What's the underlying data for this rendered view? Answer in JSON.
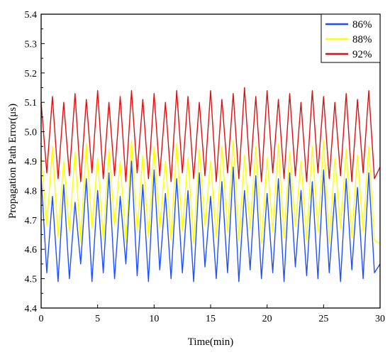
{
  "chart_data": {
    "type": "line",
    "title": "",
    "xlabel": "Time(min)",
    "ylabel": "Propagation Path Error(μs)",
    "xlim": [
      0,
      30
    ],
    "ylim": [
      4.4,
      5.4
    ],
    "x_ticks": [
      0,
      5,
      10,
      15,
      20,
      25,
      30
    ],
    "y_ticks": [
      4.4,
      4.5,
      4.6,
      4.7,
      4.8,
      4.9,
      5.0,
      5.1,
      5.2,
      5.3,
      5.4
    ],
    "x_tick_labels": [
      "0",
      "5",
      "10",
      "15",
      "20",
      "25",
      "30"
    ],
    "y_tick_labels": [
      "4.4",
      "4.5",
      "4.6",
      "4.7",
      "4.8",
      "4.9",
      "5.0",
      "5.1",
      "5.2",
      "5.3",
      "5.4"
    ],
    "grid": false,
    "legend_position": "top-right",
    "series": [
      {
        "name": "86%",
        "color": "#1f4fff",
        "x": [
          0.0,
          0.5,
          1.0,
          1.5,
          2.0,
          2.5,
          3.0,
          3.5,
          4.0,
          4.5,
          5.0,
          5.5,
          6.0,
          6.5,
          7.0,
          7.5,
          8.0,
          8.5,
          9.0,
          9.5,
          10.0,
          10.5,
          11.0,
          11.5,
          12.0,
          12.5,
          13.0,
          13.5,
          14.0,
          14.5,
          15.0,
          15.5,
          16.0,
          16.5,
          17.0,
          17.5,
          18.0,
          18.5,
          19.0,
          19.5,
          20.0,
          20.5,
          21.0,
          21.5,
          22.0,
          22.5,
          23.0,
          23.5,
          24.0,
          24.5,
          25.0,
          25.5,
          26.0,
          26.5,
          27.0,
          27.5,
          28.0,
          28.5,
          29.0,
          29.5,
          30.0
        ],
        "y": [
          4.85,
          4.52,
          4.78,
          4.49,
          4.82,
          4.5,
          4.76,
          4.55,
          4.84,
          4.49,
          4.8,
          4.52,
          4.86,
          4.5,
          4.78,
          4.55,
          4.9,
          4.51,
          4.82,
          4.49,
          4.87,
          4.53,
          4.79,
          4.5,
          4.84,
          4.52,
          4.8,
          4.49,
          4.86,
          4.54,
          4.78,
          4.5,
          4.83,
          4.52,
          4.88,
          4.49,
          4.8,
          4.53,
          4.85,
          4.5,
          4.79,
          4.52,
          4.84,
          4.49,
          4.86,
          4.54,
          4.8,
          4.51,
          4.83,
          4.5,
          4.87,
          4.52,
          4.79,
          4.49,
          4.84,
          4.53,
          4.81,
          4.5,
          4.86,
          4.52,
          4.55
        ]
      },
      {
        "name": "88%",
        "color": "#ffff00",
        "x": [
          0.0,
          0.5,
          1.0,
          1.5,
          2.0,
          2.5,
          3.0,
          3.5,
          4.0,
          4.5,
          5.0,
          5.5,
          6.0,
          6.5,
          7.0,
          7.5,
          8.0,
          8.5,
          9.0,
          9.5,
          10.0,
          10.5,
          11.0,
          11.5,
          12.0,
          12.5,
          13.0,
          13.5,
          14.0,
          14.5,
          15.0,
          15.5,
          16.0,
          16.5,
          17.0,
          17.5,
          18.0,
          18.5,
          19.0,
          19.5,
          20.0,
          20.5,
          21.0,
          21.5,
          22.0,
          22.5,
          23.0,
          23.5,
          24.0,
          24.5,
          25.0,
          25.5,
          26.0,
          26.5,
          27.0,
          27.5,
          28.0,
          28.5,
          29.0,
          29.5,
          30.0
        ],
        "y": [
          4.92,
          4.68,
          4.95,
          4.64,
          4.9,
          4.66,
          4.93,
          4.62,
          4.96,
          4.67,
          4.91,
          4.63,
          4.94,
          4.68,
          4.9,
          4.62,
          4.97,
          4.66,
          4.92,
          4.64,
          4.95,
          4.67,
          4.9,
          4.63,
          4.96,
          4.66,
          4.91,
          4.62,
          4.94,
          4.68,
          4.9,
          4.64,
          4.95,
          4.66,
          4.97,
          4.63,
          4.92,
          4.67,
          4.95,
          4.62,
          4.91,
          4.66,
          4.96,
          4.64,
          4.93,
          4.68,
          4.9,
          4.63,
          4.95,
          4.66,
          4.97,
          4.62,
          4.91,
          4.67,
          4.94,
          4.64,
          4.92,
          4.66,
          4.95,
          4.63,
          4.62
        ]
      },
      {
        "name": "92%",
        "color": "#e01010",
        "x": [
          0.0,
          0.5,
          1.0,
          1.5,
          2.0,
          2.5,
          3.0,
          3.5,
          4.0,
          4.5,
          5.0,
          5.5,
          6.0,
          6.5,
          7.0,
          7.5,
          8.0,
          8.5,
          9.0,
          9.5,
          10.0,
          10.5,
          11.0,
          11.5,
          12.0,
          12.5,
          13.0,
          13.5,
          14.0,
          14.5,
          15.0,
          15.5,
          16.0,
          16.5,
          17.0,
          17.5,
          18.0,
          18.5,
          19.0,
          19.5,
          20.0,
          20.5,
          21.0,
          21.5,
          22.0,
          22.5,
          23.0,
          23.5,
          24.0,
          24.5,
          25.0,
          25.5,
          26.0,
          26.5,
          27.0,
          27.5,
          28.0,
          28.5,
          29.0,
          29.5,
          30.0
        ],
        "y": [
          5.1,
          4.86,
          5.12,
          4.84,
          5.1,
          4.85,
          5.13,
          4.83,
          5.11,
          4.86,
          5.14,
          4.84,
          5.1,
          4.85,
          5.12,
          4.83,
          5.14,
          4.86,
          5.11,
          4.84,
          5.13,
          4.85,
          5.1,
          4.83,
          5.14,
          4.86,
          5.12,
          4.84,
          5.1,
          4.85,
          5.14,
          4.83,
          5.11,
          4.86,
          5.13,
          4.84,
          5.15,
          4.85,
          5.12,
          4.83,
          5.14,
          4.86,
          5.11,
          4.84,
          5.13,
          4.85,
          5.1,
          4.83,
          5.14,
          4.86,
          5.12,
          4.84,
          5.1,
          4.85,
          5.13,
          4.83,
          5.11,
          4.86,
          5.14,
          4.84,
          4.88
        ]
      }
    ]
  }
}
